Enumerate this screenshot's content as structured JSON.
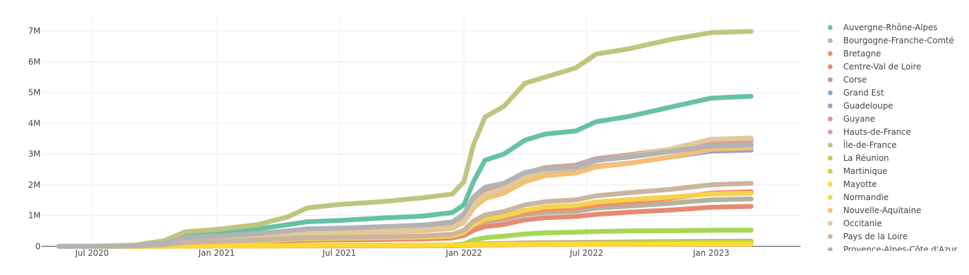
{
  "chart_data": {
    "type": "line",
    "title": "",
    "xlabel": "",
    "ylabel": "",
    "x_ticks": [
      "Jul 2020",
      "Jan 2021",
      "Jul 2021",
      "Jan 2022",
      "Jul 2022",
      "Jan 2023"
    ],
    "x_tick_dates": [
      "2020-07-01",
      "2021-01-01",
      "2021-07-01",
      "2022-01-01",
      "2022-07-01",
      "2023-01-01"
    ],
    "xlim": [
      "2020-04-17",
      "2023-05-13"
    ],
    "y_ticks": [
      0,
      1000000,
      2000000,
      3000000,
      4000000,
      5000000,
      6000000,
      7000000
    ],
    "y_tick_labels": [
      "0",
      "1M",
      "2M",
      "3M",
      "4M",
      "5M",
      "6M",
      "7M"
    ],
    "ylim": [
      -150000,
      7450000
    ],
    "grid": true,
    "legend_position": "right",
    "dates": [
      "2020-05-13",
      "2020-07-01",
      "2020-09-01",
      "2020-10-15",
      "2020-11-15",
      "2021-01-01",
      "2021-03-01",
      "2021-04-15",
      "2021-05-15",
      "2021-07-01",
      "2021-09-01",
      "2021-11-01",
      "2021-12-15",
      "2022-01-01",
      "2022-01-15",
      "2022-02-01",
      "2022-03-01",
      "2022-04-01",
      "2022-05-01",
      "2022-06-15",
      "2022-07-15",
      "2022-09-01",
      "2022-11-01",
      "2023-01-01",
      "2023-03-01"
    ],
    "series": [
      {
        "name": "Auvergne-Rhône-Alpes",
        "color": "#66c2a5",
        "values": [
          0,
          2000,
          25000,
          120000,
          380000,
          460000,
          560000,
          700000,
          800000,
          840000,
          920000,
          980000,
          1100000,
          1350000,
          2100000,
          2800000,
          3000000,
          3450000,
          3650000,
          3750000,
          4050000,
          4220000,
          4520000,
          4820000,
          4880000
        ]
      },
      {
        "name": "Bourgogne-Franche-Comté",
        "color": "#b3b3a0",
        "values": [
          0,
          1000,
          8000,
          40000,
          110000,
          140000,
          180000,
          230000,
          260000,
          270000,
          290000,
          310000,
          350000,
          450000,
          650000,
          800000,
          880000,
          1030000,
          1100000,
          1140000,
          1240000,
          1310000,
          1400000,
          1510000,
          1540000
        ]
      },
      {
        "name": "Bretagne",
        "color": "#fc8d62",
        "values": [
          0,
          1000,
          8000,
          40000,
          120000,
          150000,
          190000,
          240000,
          270000,
          280000,
          300000,
          320000,
          360000,
          470000,
          700000,
          850000,
          940000,
          1110000,
          1200000,
          1250000,
          1360000,
          1440000,
          1560000,
          1730000,
          1780000
        ]
      },
      {
        "name": "Centre-Val de Loire",
        "color": "#e78a74",
        "values": [
          0,
          1000,
          7000,
          35000,
          90000,
          110000,
          140000,
          180000,
          200000,
          210000,
          220000,
          240000,
          270000,
          350000,
          520000,
          640000,
          710000,
          860000,
          930000,
          970000,
          1040000,
          1110000,
          1180000,
          1270000,
          1300000
        ]
      },
      {
        "name": "Corse",
        "color": "#b59a9e",
        "values": [
          0,
          200,
          1000,
          4000,
          10000,
          13000,
          16000,
          20000,
          23000,
          24000,
          25000,
          27000,
          30000,
          38000,
          55000,
          68000,
          75000,
          88000,
          95000,
          100000,
          108000,
          114000,
          120000,
          128000,
          130000
        ]
      },
      {
        "name": "Grand Est",
        "color": "#8da0cb",
        "values": [
          0,
          2000,
          15000,
          80000,
          220000,
          270000,
          330000,
          410000,
          460000,
          480000,
          520000,
          560000,
          640000,
          850000,
          1300000,
          1600000,
          1800000,
          2150000,
          2350000,
          2420000,
          2600000,
          2700000,
          2900000,
          3100000,
          3130000
        ]
      },
      {
        "name": "Guadeloupe",
        "color": "#b097cf",
        "values": [
          0,
          100,
          1000,
          5000,
          12000,
          15000,
          19000,
          24000,
          27000,
          28000,
          30000,
          32000,
          36000,
          46000,
          68000,
          84000,
          93000,
          110000,
          118000,
          123000,
          132000,
          140000,
          150000,
          160000,
          163000
        ]
      },
      {
        "name": "Guyane",
        "color": "#e78ac3",
        "values": [
          0,
          100,
          500,
          2000,
          5000,
          7000,
          9000,
          11000,
          13000,
          14000,
          15000,
          16000,
          18000,
          23000,
          34000,
          42000,
          47000,
          55000,
          59000,
          61000,
          65000,
          68000,
          71000,
          75000,
          76000
        ]
      },
      {
        "name": "Hauts-de-France",
        "color": "#d7a09c",
        "values": [
          0,
          2000,
          18000,
          90000,
          250000,
          300000,
          370000,
          460000,
          520000,
          540000,
          580000,
          630000,
          720000,
          950000,
          1450000,
          1780000,
          1980000,
          2380000,
          2560000,
          2640000,
          2850000,
          2970000,
          3150000,
          3380000,
          3420000
        ]
      },
      {
        "name": "Île-de-France",
        "color": "#c0c57f",
        "values": [
          0,
          3000,
          40000,
          180000,
          470000,
          550000,
          700000,
          950000,
          1250000,
          1360000,
          1450000,
          1580000,
          1700000,
          2100000,
          3300000,
          4200000,
          4550000,
          5300000,
          5500000,
          5800000,
          6250000,
          6420000,
          6720000,
          6950000,
          6990000
        ]
      },
      {
        "name": "La Réunion",
        "color": "#a6d854",
        "values": [
          0,
          200,
          2000,
          6000,
          15000,
          20000,
          25000,
          30000,
          35000,
          38000,
          40000,
          43000,
          50000,
          80000,
          200000,
          280000,
          330000,
          400000,
          440000,
          460000,
          480000,
          500000,
          510000,
          520000,
          525000
        ]
      },
      {
        "name": "Martinique",
        "color": "#c4d633",
        "values": [
          0,
          100,
          800,
          4000,
          9000,
          11000,
          14000,
          18000,
          21000,
          23000,
          25000,
          27000,
          30000,
          38000,
          58000,
          72000,
          80000,
          94000,
          100000,
          104000,
          112000,
          118000,
          125000,
          132000,
          134000
        ]
      },
      {
        "name": "Mayotte",
        "color": "#ffd92f",
        "values": [
          0,
          500,
          2000,
          5000,
          10000,
          15000,
          20000,
          25000,
          30000,
          32000,
          34000,
          36000,
          40000,
          45000,
          55000,
          60000,
          63000,
          66000,
          68000,
          69000,
          70000,
          71000,
          72000,
          73000,
          73000
        ]
      },
      {
        "name": "Normandie",
        "color": "#f3d44f",
        "values": [
          0,
          1000,
          8000,
          40000,
          110000,
          135000,
          170000,
          220000,
          250000,
          260000,
          280000,
          300000,
          340000,
          450000,
          700000,
          880000,
          980000,
          1170000,
          1280000,
          1330000,
          1440000,
          1520000,
          1600000,
          1700000,
          1720000
        ]
      },
      {
        "name": "Nouvelle-Aquitaine",
        "color": "#f5bf74",
        "values": [
          0,
          1500,
          15000,
          70000,
          200000,
          240000,
          300000,
          370000,
          420000,
          440000,
          470000,
          510000,
          580000,
          780000,
          1250000,
          1550000,
          1730000,
          2100000,
          2300000,
          2380000,
          2580000,
          2700000,
          2900000,
          3150000,
          3200000
        ]
      },
      {
        "name": "Occitanie",
        "color": "#e1c99c",
        "values": [
          0,
          1500,
          16000,
          75000,
          210000,
          250000,
          310000,
          390000,
          440000,
          460000,
          500000,
          540000,
          610000,
          820000,
          1350000,
          1680000,
          1880000,
          2250000,
          2460000,
          2550000,
          2780000,
          2920000,
          3160000,
          3480000,
          3520000
        ]
      },
      {
        "name": "Pays de la Loire",
        "color": "#cbb4a0",
        "values": [
          0,
          1000,
          10000,
          45000,
          130000,
          160000,
          200000,
          250000,
          280000,
          290000,
          310000,
          340000,
          390000,
          520000,
          820000,
          1020000,
          1130000,
          1350000,
          1450000,
          1510000,
          1640000,
          1740000,
          1850000,
          2000000,
          2050000
        ]
      },
      {
        "name": "Provence-Alpes-Côte d'Azur",
        "color": "#b3b3b3",
        "values": [
          0,
          2000,
          20000,
          100000,
          280000,
          330000,
          410000,
          500000,
          570000,
          590000,
          640000,
          690000,
          790000,
          1050000,
          1600000,
          1920000,
          2050000,
          2400000,
          2520000,
          2580000,
          2800000,
          2900000,
          3080000,
          3260000,
          3300000
        ]
      }
    ]
  }
}
